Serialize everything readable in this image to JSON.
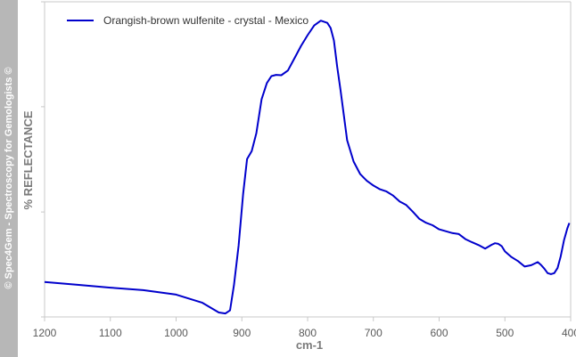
{
  "watermark": "© Spec4Gem - Spectroscopy for Gemologists ©",
  "colors": {
    "series": "#0000cc",
    "axis": "#c8c8c8",
    "strip": "#b7b7b7"
  },
  "chart_data": {
    "type": "line",
    "title": "",
    "xlabel": "cm-1",
    "ylabel": "% REFLECTANCE",
    "xlim": [
      1200,
      400
    ],
    "x_reversed": true,
    "ylim": [
      0,
      1
    ],
    "y_tick_labels_shown": false,
    "x_ticks": [
      "1200",
      "1100",
      "1000",
      "900",
      "800",
      "700",
      "600",
      "500",
      "400"
    ],
    "grid": false,
    "legend": "top-left",
    "series": [
      {
        "name": "Orangish-brown wulfenite - crystal - Mexico",
        "color": "#0000cc",
        "x": [
          1200,
          1150,
          1100,
          1050,
          1000,
          960,
          935,
          925,
          918,
          912,
          905,
          898,
          892,
          885,
          878,
          870,
          862,
          855,
          848,
          840,
          830,
          820,
          810,
          800,
          790,
          780,
          770,
          765,
          760,
          755,
          750,
          740,
          730,
          720,
          710,
          700,
          690,
          680,
          670,
          660,
          650,
          640,
          630,
          620,
          610,
          600,
          590,
          580,
          570,
          560,
          550,
          540,
          530,
          520,
          515,
          510,
          505,
          500,
          490,
          480,
          470,
          460,
          450,
          445,
          440,
          435,
          430,
          425,
          420,
          415,
          410,
          405,
          402
        ],
        "y": [
          0.111,
          0.102,
          0.093,
          0.085,
          0.071,
          0.045,
          0.014,
          0.011,
          0.021,
          0.101,
          0.226,
          0.391,
          0.501,
          0.526,
          0.583,
          0.691,
          0.742,
          0.764,
          0.768,
          0.767,
          0.782,
          0.821,
          0.86,
          0.894,
          0.925,
          0.94,
          0.933,
          0.917,
          0.877,
          0.793,
          0.72,
          0.561,
          0.493,
          0.453,
          0.432,
          0.417,
          0.405,
          0.398,
          0.385,
          0.366,
          0.355,
          0.334,
          0.311,
          0.299,
          0.291,
          0.278,
          0.272,
          0.266,
          0.263,
          0.247,
          0.237,
          0.228,
          0.217,
          0.229,
          0.234,
          0.232,
          0.225,
          0.208,
          0.19,
          0.177,
          0.16,
          0.164,
          0.174,
          0.165,
          0.153,
          0.139,
          0.136,
          0.139,
          0.155,
          0.193,
          0.244,
          0.281,
          0.298
        ]
      }
    ]
  }
}
